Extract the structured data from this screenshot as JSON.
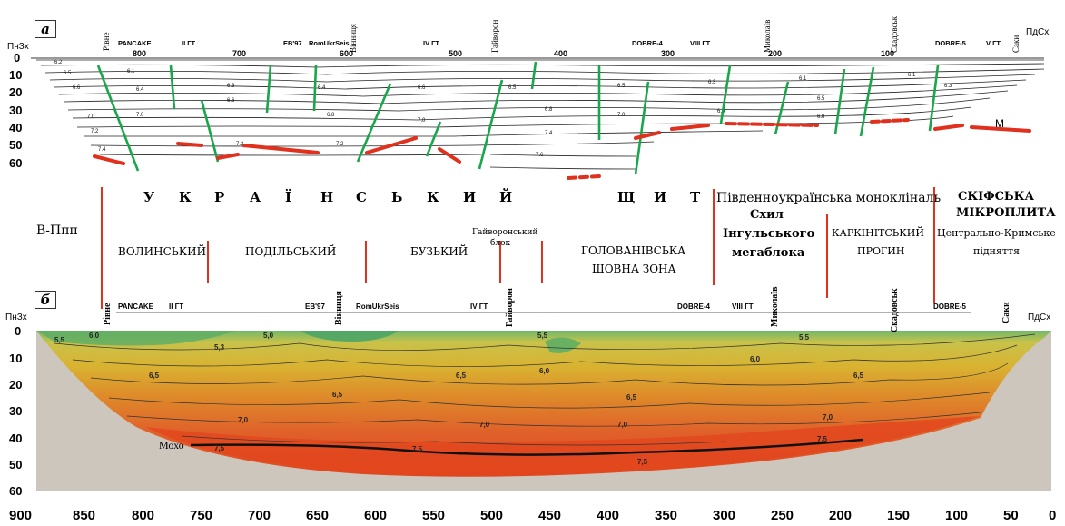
{
  "panel_a": {
    "label": "a",
    "left_dir": "ПнЗх",
    "right_dir": "ПдСх",
    "depth_ticks": [
      "0",
      "10",
      "20",
      "30",
      "40",
      "50",
      "60"
    ],
    "distance_ticks": [
      "800",
      "700",
      "600",
      "500",
      "400",
      "300",
      "200",
      "100"
    ],
    "markers": [
      "PANCAKE",
      "II ГТ",
      "EB'97",
      "RomUkrSeis",
      "IV ГТ",
      "DOBRE-4",
      "VIII ГТ",
      "DOBRE-5",
      "V ГТ"
    ],
    "towns": [
      "Рівне",
      "Вінниця",
      "Гайворон",
      "Миколаїв",
      "Скадовськ",
      "Саки"
    ],
    "moho_label": "M"
  },
  "regions": {
    "ukr_shield": [
      "У",
      "К",
      "Р",
      "А",
      "Ї",
      "Н",
      "С",
      "Ь",
      "К",
      "И",
      "Й",
      "Щ",
      "И",
      "Т"
    ],
    "south_monocline": "Південноукраїнська моноклінал​ь",
    "scythian": [
      "СКІФСЬКА",
      "МІКРОПЛИТА"
    ],
    "v_ppp": "В-Ппп",
    "volyn": "ВОЛИНСЬКИЙ",
    "podil": "ПОДІЛЬСЬКИЙ",
    "buz": "БУЗЬКИЙ",
    "haivoron": [
      "Гайворонський",
      "блок"
    ],
    "holovan": [
      "ГОЛОВАНІВСЬКА",
      "ШОВНА ЗОНА"
    ],
    "ingul": [
      "Схил",
      "Інгульського",
      "мегаблока"
    ],
    "karkinit": [
      "КАРКІНІТСЬКИЙ",
      "ПРОГИН"
    ],
    "crimea": [
      "Центрально-Кримське",
      "підняття"
    ]
  },
  "panel_b": {
    "label": "б",
    "left_dir": "ПнЗх",
    "right_dir": "ПдСх",
    "depth_ticks": [
      "0",
      "10",
      "20",
      "30",
      "40",
      "50",
      "60"
    ],
    "distance_ticks": [
      "900",
      "850",
      "800",
      "750",
      "700",
      "650",
      "600",
      "550",
      "500",
      "450",
      "400",
      "350",
      "300",
      "250",
      "200",
      "150",
      "100",
      "50",
      "0"
    ],
    "markers": [
      "PANCAKE",
      "II ГТ",
      "EB'97",
      "RomUkrSeis",
      "IV ГТ",
      "DOBRE-4",
      "VIII ГТ",
      "DOBRE-5"
    ],
    "towns": [
      "Рівне",
      "Вінниця",
      "Гайворон",
      "Миколаїв",
      "Скадовськ",
      "Саки"
    ],
    "moho_label": "Мохо",
    "contour_labels": [
      "5,5",
      "6,0",
      "5,0",
      "5,3",
      "6,5",
      "7,0",
      "7,5",
      "6,0",
      "5,5"
    ]
  },
  "colors": {
    "fault": "#1aa64a",
    "moho": "#e0301e",
    "ground": "#cdc6bd",
    "v_low": "#5fae64",
    "v_mid": "#d8b52a",
    "v_high": "#e0501f"
  }
}
